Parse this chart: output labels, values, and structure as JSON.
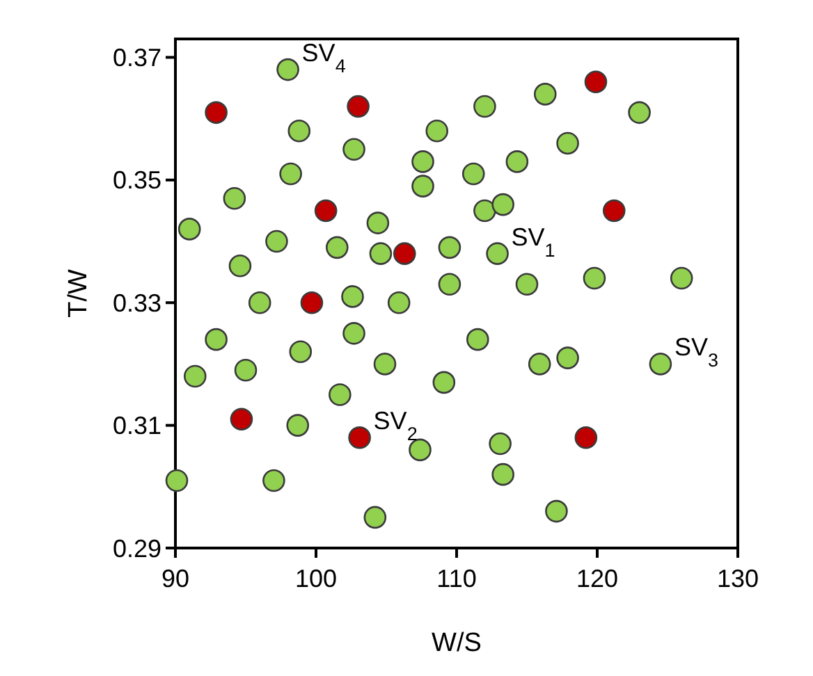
{
  "chart_data": {
    "type": "scatter",
    "xlabel": "W/S",
    "ylabel": "T/W",
    "xlim": [
      90,
      130
    ],
    "xticks": [
      90,
      100,
      110,
      120,
      130
    ],
    "ylim": [
      0.29,
      0.373
    ],
    "yticks": [
      0.29,
      0.31,
      0.33,
      0.35,
      0.37
    ],
    "grid": false,
    "marker": "circle",
    "series": [
      {
        "color": "#92d050",
        "x": [
          98.0,
          98.8,
          102.7,
          108.6,
          107.6,
          98.2,
          107.6,
          94.2,
          91.0,
          104.4,
          97.2,
          101.5,
          104.6,
          109.5,
          94.6,
          109.5,
          102.6,
          105.9,
          96.0,
          112.0,
          116.3,
          123.0,
          117.9,
          111.2,
          114.3,
          112.0,
          113.3,
          112.9,
          115.0,
          119.8,
          126.0,
          92.9,
          102.7,
          98.9,
          104.9,
          91.4,
          95.0,
          109.1,
          101.7,
          98.7,
          107.4,
          90.1,
          97.0,
          104.2,
          111.5,
          115.9,
          117.9,
          124.5,
          113.1,
          113.3,
          117.1
        ],
        "values": [
          0.368,
          0.358,
          0.355,
          0.358,
          0.353,
          0.351,
          0.349,
          0.347,
          0.342,
          0.343,
          0.34,
          0.339,
          0.338,
          0.339,
          0.336,
          0.333,
          0.331,
          0.33,
          0.33,
          0.362,
          0.364,
          0.361,
          0.356,
          0.351,
          0.353,
          0.345,
          0.346,
          0.338,
          0.333,
          0.334,
          0.334,
          0.324,
          0.325,
          0.322,
          0.32,
          0.318,
          0.319,
          0.317,
          0.315,
          0.31,
          0.306,
          0.301,
          0.301,
          0.295,
          0.324,
          0.32,
          0.321,
          0.32,
          0.307,
          0.302,
          0.296
        ]
      },
      {
        "color": "#c00000",
        "x": [
          92.9,
          103.0,
          100.7,
          106.3,
          99.7,
          119.9,
          121.2,
          94.7,
          103.1,
          119.2
        ],
        "values": [
          0.361,
          0.362,
          0.345,
          0.338,
          0.33,
          0.366,
          0.345,
          0.311,
          0.308,
          0.308
        ]
      }
    ],
    "annotations": [
      {
        "text": "SV$_{4}$",
        "x": 98.0,
        "y": 0.368
      },
      {
        "text": "SV$_{1}$",
        "x": 112.9,
        "y": 0.338
      },
      {
        "text": "SV$_{2}$",
        "x": 103.1,
        "y": 0.308
      },
      {
        "text": "SV$_{3}$",
        "x": 124.5,
        "y": 0.32
      }
    ]
  }
}
